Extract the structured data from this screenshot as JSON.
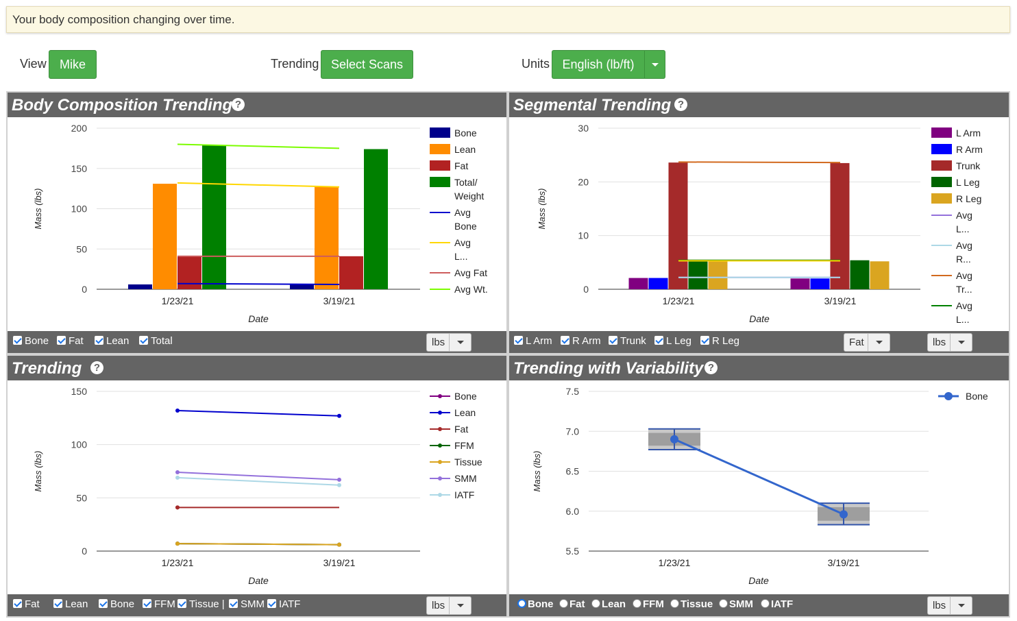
{
  "banner": "Your body composition changing over time.",
  "controls": {
    "view_label": "View",
    "view_value": "Mike",
    "trending_label": "Trending",
    "trending_button": "Select Scans",
    "units_label": "Units",
    "units_value": "English (lb/ft)"
  },
  "colors": {
    "header": "#646464",
    "button_green": "#4cae4c"
  },
  "panels": {
    "body": {
      "title": "Body Composition Trending",
      "help": "?",
      "checkboxes": [
        "Bone",
        "Fat",
        "Lean",
        "Total"
      ],
      "unit_select": "lbs"
    },
    "segmental": {
      "title": "Segmental Trending",
      "help": "?",
      "checkboxes": [
        "L Arm",
        "R Arm",
        "Trunk",
        "L Leg",
        "R Leg"
      ],
      "tissue_select": "Fat",
      "unit_select": "lbs"
    },
    "trending": {
      "title": "Trending",
      "help": "?",
      "checkboxes": [
        "Fat",
        "Lean",
        "Bone",
        "FFM",
        "Tissue |",
        "SMM",
        "IATF"
      ],
      "unit_select": "lbs"
    },
    "variability": {
      "title": "Trending with Variability",
      "help": "?",
      "radios": [
        "Bone",
        "Fat",
        "Lean",
        "FFM",
        "Tissue",
        "SMM",
        "IATF"
      ],
      "radio_selected": "Bone",
      "unit_select": "lbs"
    }
  },
  "chart_data": [
    {
      "type": "bar",
      "ylabel": "Mass (lbs)",
      "xlabel": "Date",
      "categories": [
        "1/23/21",
        "3/19/21"
      ],
      "ylim": [
        0,
        200
      ],
      "yticks": [
        0,
        50,
        100,
        150,
        200
      ],
      "series": [
        {
          "name": "Bone",
          "color": "#00008b",
          "values": [
            6,
            6
          ]
        },
        {
          "name": "Lean",
          "color": "#ff8c00",
          "values": [
            131,
            127
          ]
        },
        {
          "name": "Fat",
          "color": "#b22222",
          "values": [
            41,
            41
          ]
        },
        {
          "name": "Total/ Weight",
          "color": "#008000",
          "values": [
            179,
            174
          ]
        }
      ],
      "lines": [
        {
          "name": "Avg Bone",
          "color": "#0000cd",
          "values": [
            7,
            6
          ]
        },
        {
          "name": "Avg L...",
          "color": "#ffd700",
          "values": [
            132,
            127
          ]
        },
        {
          "name": "Avg Fat",
          "color": "#cd5c5c",
          "values": [
            41,
            41
          ]
        },
        {
          "name": "Avg Wt.",
          "color": "#7cfc00",
          "values": [
            180,
            175
          ]
        }
      ],
      "legend": "right"
    },
    {
      "type": "bar",
      "ylabel": "Mass (lbs)",
      "xlabel": "Date",
      "categories": [
        "1/23/21",
        "3/19/21"
      ],
      "ylim": [
        0,
        30
      ],
      "yticks": [
        0,
        10,
        20,
        30
      ],
      "series": [
        {
          "name": "L Arm",
          "color": "#800080",
          "values": [
            2.1,
            2.0
          ]
        },
        {
          "name": "R Arm",
          "color": "#0000ff",
          "values": [
            2.1,
            2.0
          ]
        },
        {
          "name": "Trunk",
          "color": "#a52a2a",
          "values": [
            23.6,
            23.5
          ]
        },
        {
          "name": "L Leg",
          "color": "#006400",
          "values": [
            5.3,
            5.4
          ]
        },
        {
          "name": "R Leg",
          "color": "#daa520",
          "values": [
            5.3,
            5.2
          ]
        }
      ],
      "lines": [
        {
          "name": "Avg L...",
          "color": "#9370db",
          "values": [
            2.2,
            2.2
          ]
        },
        {
          "name": "Avg R...",
          "color": "#add8e6",
          "values": [
            2.2,
            2.2
          ]
        },
        {
          "name": "Avg Tr...",
          "color": "#d2691e",
          "values": [
            23.7,
            23.6
          ]
        },
        {
          "name": "Avg L...",
          "color": "#008000",
          "values": [
            5.4,
            5.4
          ]
        },
        {
          "name": "Avg R...",
          "color": "#ffd700",
          "values": [
            5.3,
            5.3
          ]
        }
      ],
      "legend": "right"
    },
    {
      "type": "line",
      "ylabel": "Mass (lbs)",
      "xlabel": "Date",
      "categories": [
        "1/23/21",
        "3/19/21"
      ],
      "ylim": [
        0,
        150
      ],
      "yticks": [
        0,
        50,
        100,
        150
      ],
      "series": [
        {
          "name": "Bone",
          "color": "#800080",
          "values": [
            7,
            6
          ]
        },
        {
          "name": "Lean",
          "color": "#0000cd",
          "values": [
            132,
            127
          ]
        },
        {
          "name": "Fat",
          "color": "#a52a2a",
          "values": [
            41,
            41
          ]
        },
        {
          "name": "FFM",
          "color": "#006400",
          "values": [
            7,
            6
          ]
        },
        {
          "name": "Tissue",
          "color": "#daa520",
          "values": [
            7,
            6
          ]
        },
        {
          "name": "SMM",
          "color": "#9370db",
          "values": [
            74,
            67
          ]
        },
        {
          "name": "IATF",
          "color": "#add8e6",
          "values": [
            69,
            62
          ]
        }
      ],
      "legend": "right"
    },
    {
      "type": "line",
      "ylabel": "Mass (lbs)",
      "xlabel": "Date",
      "categories": [
        "1/23/21",
        "3/19/21"
      ],
      "ylim": [
        5.5,
        7.5
      ],
      "yticks": [
        "5.5",
        "6.0",
        "6.5",
        "7.0",
        "7.5"
      ],
      "series": [
        {
          "name": "Bone",
          "color": "#3366cc",
          "values": [
            6.9,
            5.96
          ],
          "range_outer": [
            [
              6.77,
              7.03
            ],
            [
              5.83,
              6.1
            ]
          ],
          "range_inner": [
            [
              6.82,
              6.98
            ],
            [
              5.88,
              6.05
            ]
          ]
        }
      ],
      "legend": "top-right"
    }
  ]
}
